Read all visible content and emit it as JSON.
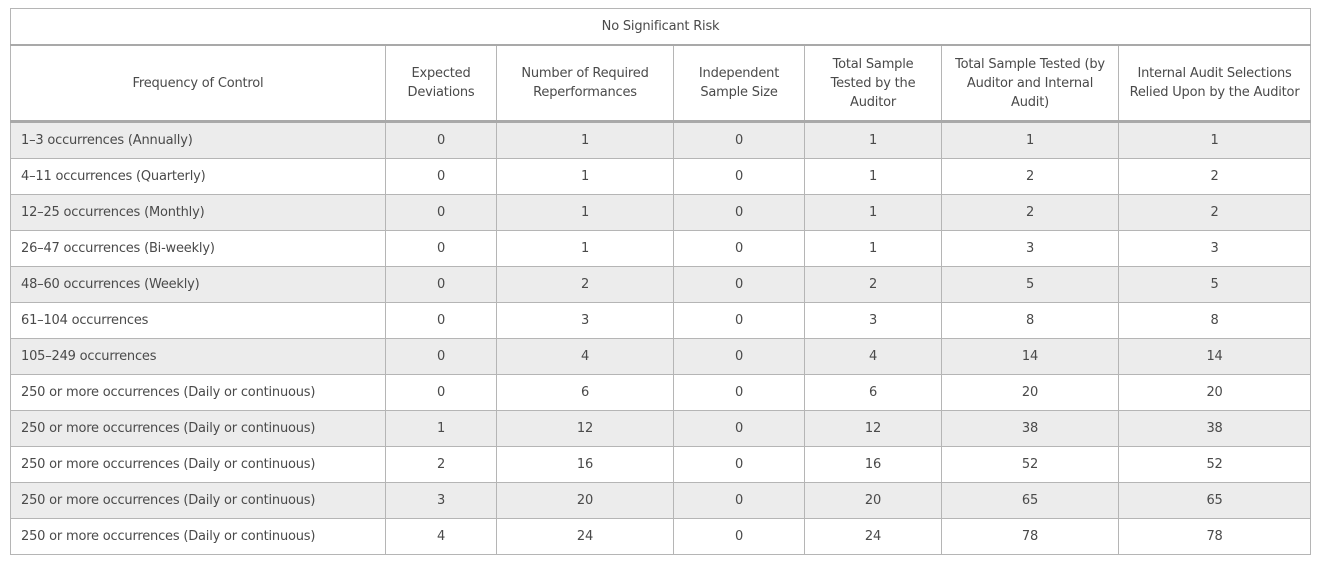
{
  "table": {
    "title": "No Significant Risk",
    "headers": [
      "Frequency of Control",
      "Expected Deviations",
      "Number of Required Reperformances",
      "Independent Sample Size",
      "Total Sample Tested by the Auditor",
      "Total Sample Tested (by Auditor and Internal Audit)",
      "Internal Audit Selections Relied Upon by the Auditor"
    ],
    "rows": [
      [
        "1–3 occurrences (Annually)",
        "0",
        "1",
        "0",
        "1",
        "1",
        "1"
      ],
      [
        "4–11 occurrences (Quarterly)",
        "0",
        "1",
        "0",
        "1",
        "2",
        "2"
      ],
      [
        "12–25 occurrences (Monthly)",
        "0",
        "1",
        "0",
        "1",
        "2",
        "2"
      ],
      [
        "26–47 occurrences (Bi-weekly)",
        "0",
        "1",
        "0",
        "1",
        "3",
        "3"
      ],
      [
        "48–60 occurrences (Weekly)",
        "0",
        "2",
        "0",
        "2",
        "5",
        "5"
      ],
      [
        "61–104 occurrences",
        "0",
        "3",
        "0",
        "3",
        "8",
        "8"
      ],
      [
        "105–249 occurrences",
        "0",
        "4",
        "0",
        "4",
        "14",
        "14"
      ],
      [
        "250 or more occurrences (Daily or continuous)",
        "0",
        "6",
        "0",
        "6",
        "20",
        "20"
      ],
      [
        "250 or more occurrences (Daily or continuous)",
        "1",
        "12",
        "0",
        "12",
        "38",
        "38"
      ],
      [
        "250 or more occurrences (Daily or continuous)",
        "2",
        "16",
        "0",
        "16",
        "52",
        "52"
      ],
      [
        "250 or more occurrences (Daily or continuous)",
        "3",
        "20",
        "0",
        "20",
        "65",
        "65"
      ],
      [
        "250 or more occurrences (Daily or continuous)",
        "4",
        "24",
        "0",
        "24",
        "78",
        "78"
      ]
    ]
  }
}
